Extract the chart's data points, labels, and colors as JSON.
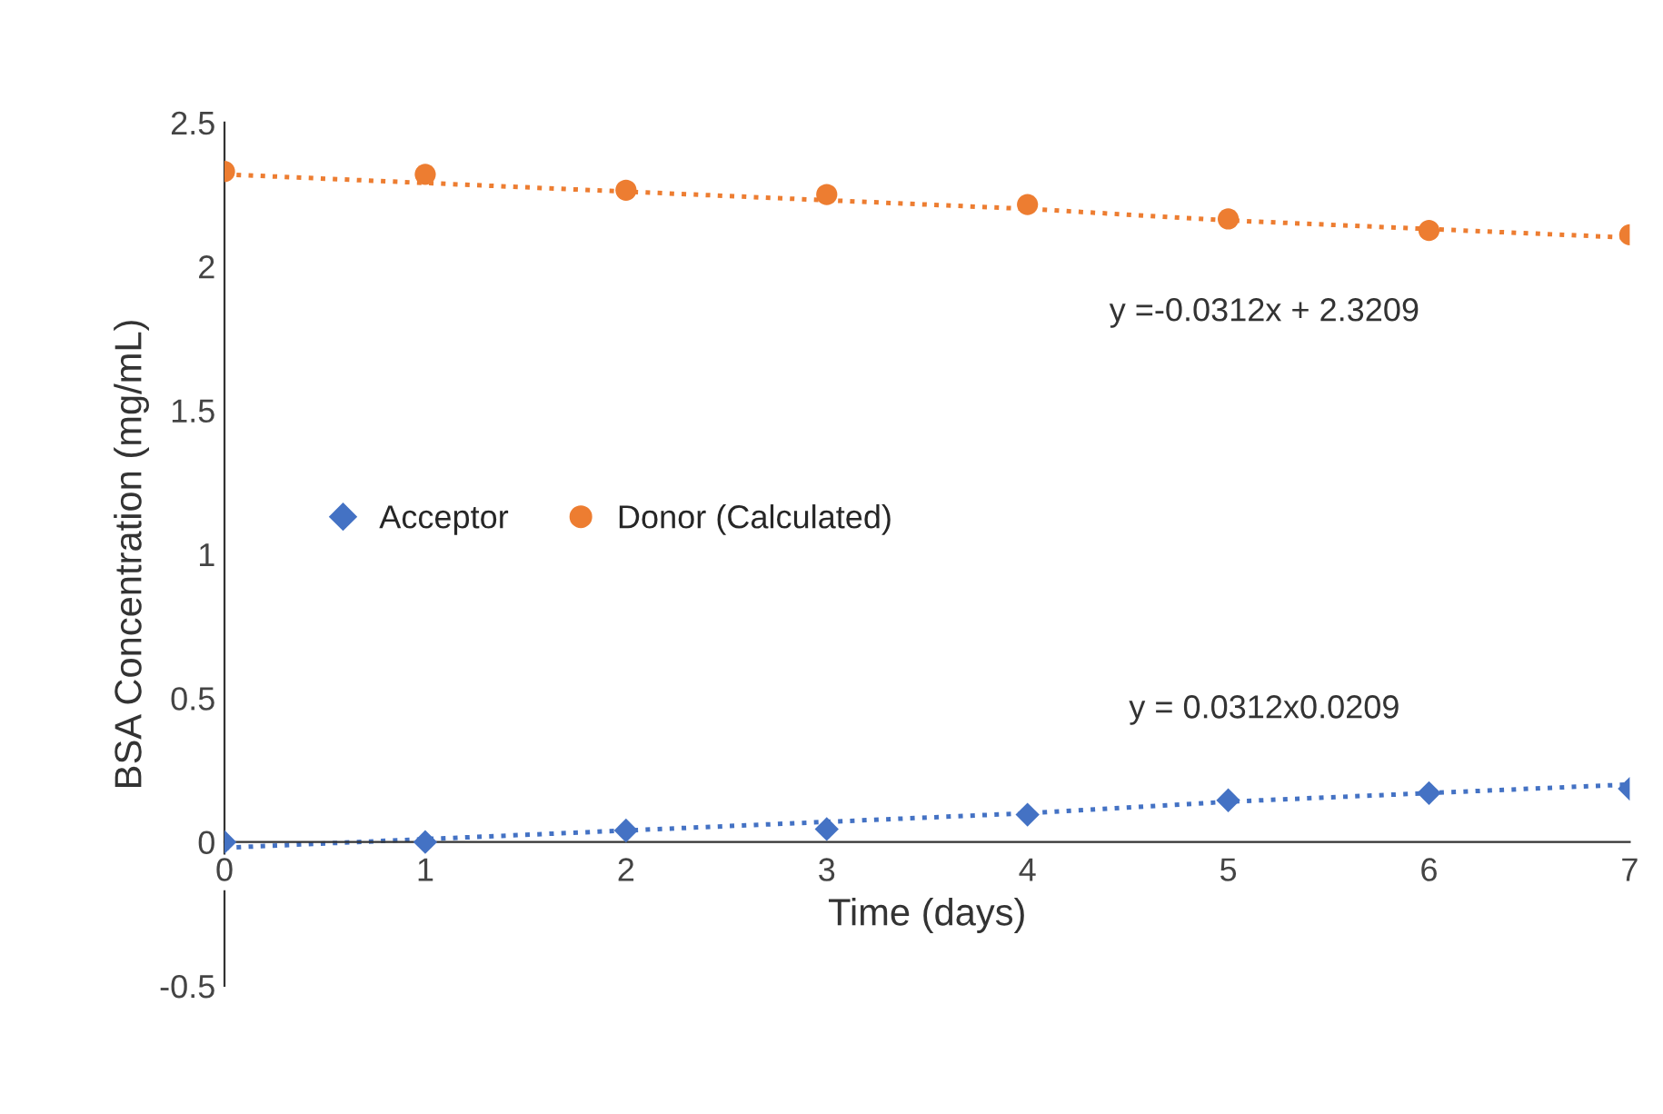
{
  "chart_data": {
    "type": "scatter",
    "xlabel": "Time (days)",
    "ylabel": "BSA Concentration (mg/mL)",
    "x": [
      0,
      1,
      2,
      3,
      4,
      5,
      6,
      7
    ],
    "series": [
      {
        "name": "Acceptor",
        "color": "#4472c4",
        "marker": "diamond",
        "values": [
          0.0,
          0.0,
          0.04,
          0.045,
          0.095,
          0.145,
          0.17,
          0.185
        ]
      },
      {
        "name": "Donor (Calculated)",
        "color": "#ed7d31",
        "marker": "circle",
        "values": [
          2.33,
          2.32,
          2.265,
          2.25,
          2.215,
          2.165,
          2.125,
          2.11
        ]
      },
      {
        "type": "line",
        "color": "#4472c4",
        "line_style": "dotted",
        "marker": "none",
        "values": [
          -0.02,
          0.01,
          0.04,
          0.07,
          0.1,
          0.14,
          0.17,
          0.2
        ]
      },
      {
        "type": "line",
        "color": "#ed7d31",
        "line_style": "dotted",
        "marker": "none",
        "values": [
          2.32,
          2.29,
          2.26,
          2.23,
          2.2,
          2.16,
          2.13,
          2.1
        ]
      }
    ],
    "xlim": [
      0,
      7
    ],
    "xticks": [
      0,
      1,
      2,
      3,
      4,
      5,
      6,
      7
    ],
    "ylim": [
      -0.5,
      2.5
    ],
    "yticks": [
      -0.5,
      0,
      0.5,
      1,
      1.5,
      2,
      2.5
    ],
    "grid": false,
    "legend": "center left",
    "annotations": [
      "y =-0.0312x + 2.3209",
      "y = 0.0312x0.0209"
    ]
  }
}
